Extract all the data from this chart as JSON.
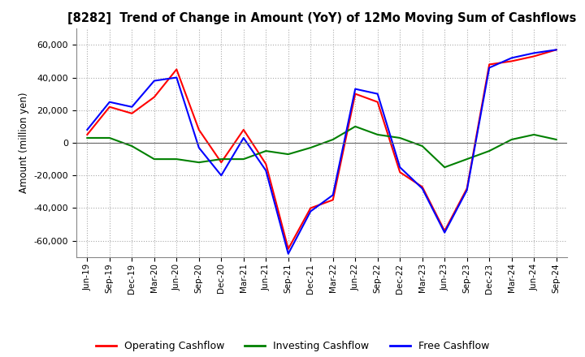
{
  "title": "[8282]  Trend of Change in Amount (YoY) of 12Mo Moving Sum of Cashflows",
  "ylabel": "Amount (million yen)",
  "ylim": [
    -70000,
    70000
  ],
  "yticks": [
    -60000,
    -40000,
    -20000,
    0,
    20000,
    40000,
    60000
  ],
  "legend": [
    "Operating Cashflow",
    "Investing Cashflow",
    "Free Cashflow"
  ],
  "legend_colors": [
    "#ff0000",
    "#008000",
    "#0000ff"
  ],
  "x_labels": [
    "Jun-19",
    "Sep-19",
    "Dec-19",
    "Mar-20",
    "Jun-20",
    "Sep-20",
    "Dec-20",
    "Mar-21",
    "Jun-21",
    "Sep-21",
    "Dec-21",
    "Mar-22",
    "Jun-22",
    "Sep-22",
    "Dec-22",
    "Mar-23",
    "Jun-23",
    "Sep-23",
    "Dec-23",
    "Mar-24",
    "Jun-24",
    "Sep-24"
  ],
  "operating": [
    5000,
    22000,
    18000,
    28000,
    45000,
    8000,
    -12000,
    8000,
    -13000,
    -65000,
    -40000,
    -35000,
    30000,
    25000,
    -18000,
    -27000,
    -54000,
    -28000,
    48000,
    50000,
    53000,
    57000
  ],
  "investing": [
    3000,
    3000,
    -2000,
    -10000,
    -10000,
    -12000,
    -10000,
    -10000,
    -5000,
    -7000,
    -3000,
    2000,
    10000,
    5000,
    3000,
    -2000,
    -15000,
    -10000,
    -5000,
    2000,
    5000,
    2000
  ],
  "free": [
    8000,
    25000,
    22000,
    38000,
    40000,
    -3000,
    -20000,
    3000,
    -17000,
    -68000,
    -42000,
    -32000,
    33000,
    30000,
    -15000,
    -28000,
    -55000,
    -29000,
    46000,
    52000,
    55000,
    57000
  ]
}
